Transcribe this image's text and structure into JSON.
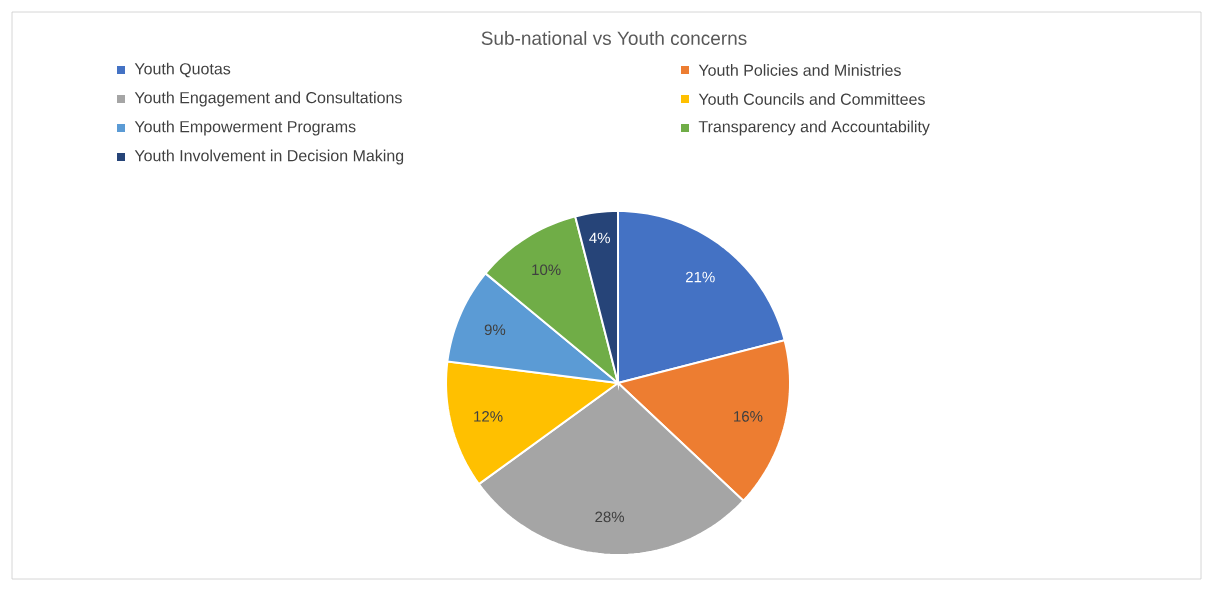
{
  "chart_data": {
    "type": "pie",
    "title": "Sub-national vs Youth concerns",
    "categories": [
      "Youth Quotas",
      "Youth Policies and Ministries",
      "Youth Engagement and Consultations",
      "Youth Councils and Committees",
      "Youth Empowerment Programs",
      "Transparency and Accountability",
      "Youth Involvement in Decision Making"
    ],
    "values": [
      21,
      16,
      28,
      12,
      9,
      10,
      4
    ],
    "value_labels": [
      "21%",
      "16%",
      "28%",
      "12%",
      "9%",
      "10%",
      "4%"
    ],
    "colors": [
      "#4472c4",
      "#ed7d31",
      "#a5a5a5",
      "#ffc000",
      "#5b9bd5",
      "#70ad47",
      "#264478"
    ],
    "legend": "top"
  }
}
